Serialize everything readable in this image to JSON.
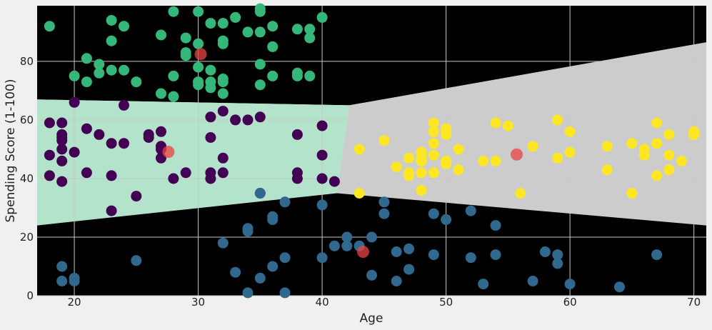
{
  "chart_data": {
    "type": "scatter",
    "title": "",
    "xlabel": "Age",
    "ylabel": "Spending Score (1-100)",
    "xlim": [
      17,
      71
    ],
    "ylim": [
      0,
      99
    ],
    "xticks": [
      20,
      30,
      40,
      50,
      60,
      70
    ],
    "yticks": [
      0,
      20,
      40,
      60,
      80
    ],
    "grid": true,
    "colors": {
      "background": "#f0f0f0",
      "grid": "#c8c8c8",
      "region_high_spenders": "#fff1a8",
      "region_young_mid": "#b3e3cb",
      "region_low_spenders": "#cdd8ea",
      "region_older_mid": "#cccccc",
      "cluster_high": "#35b779",
      "cluster_young_mid": "#440154",
      "cluster_low": "#31688e",
      "cluster_older_mid": "#fde725",
      "centroid": "#e8433f"
    },
    "regions": [
      {
        "cluster": "high",
        "vertices": [
          [
            17,
            99
          ],
          [
            71,
            99
          ],
          [
            71,
            86.5
          ],
          [
            42.2,
            65
          ],
          [
            17,
            67
          ]
        ]
      },
      {
        "cluster": "young_mid",
        "vertices": [
          [
            17,
            67
          ],
          [
            42.2,
            65
          ],
          [
            41.2,
            35
          ],
          [
            17,
            24
          ]
        ]
      },
      {
        "cluster": "older_mid",
        "vertices": [
          [
            42.2,
            65
          ],
          [
            71,
            86.5
          ],
          [
            71,
            24
          ],
          [
            41.2,
            35
          ]
        ]
      },
      {
        "cluster": "low",
        "vertices": [
          [
            17,
            24
          ],
          [
            41.2,
            35
          ],
          [
            71,
            24
          ],
          [
            71,
            0
          ],
          [
            17,
            0
          ]
        ]
      }
    ],
    "series": [
      {
        "cluster": "high",
        "points": [
          [
            18,
            92
          ],
          [
            20,
            75
          ],
          [
            21,
            81
          ],
          [
            21,
            73
          ],
          [
            22,
            79
          ],
          [
            22,
            76
          ],
          [
            23,
            94
          ],
          [
            23,
            87
          ],
          [
            23,
            77
          ],
          [
            24,
            92
          ],
          [
            24,
            77
          ],
          [
            25,
            73
          ],
          [
            27,
            89
          ],
          [
            27,
            69
          ],
          [
            28,
            97
          ],
          [
            28,
            75
          ],
          [
            28,
            68
          ],
          [
            29,
            88
          ],
          [
            29,
            83
          ],
          [
            29,
            82
          ],
          [
            30,
            97
          ],
          [
            30,
            86
          ],
          [
            30,
            78
          ],
          [
            30,
            73
          ],
          [
            30,
            72
          ],
          [
            31,
            93
          ],
          [
            31,
            77
          ],
          [
            31,
            73
          ],
          [
            31,
            71
          ],
          [
            32,
            93
          ],
          [
            32,
            87
          ],
          [
            32,
            86
          ],
          [
            32,
            74
          ],
          [
            32,
            73
          ],
          [
            32,
            69
          ],
          [
            33,
            95
          ],
          [
            34,
            90
          ],
          [
            35,
            98
          ],
          [
            35,
            97
          ],
          [
            35,
            90
          ],
          [
            35,
            79
          ],
          [
            35,
            72
          ],
          [
            36,
            92
          ],
          [
            36,
            85
          ],
          [
            36,
            75
          ],
          [
            38,
            91
          ],
          [
            38,
            76
          ],
          [
            38,
            75
          ],
          [
            39,
            91
          ],
          [
            39,
            88
          ],
          [
            39,
            75
          ],
          [
            40,
            95
          ]
        ]
      },
      {
        "cluster": "young_mid",
        "points": [
          [
            18,
            59
          ],
          [
            18,
            48
          ],
          [
            18,
            41
          ],
          [
            19,
            59
          ],
          [
            19,
            55
          ],
          [
            19,
            54
          ],
          [
            19,
            53
          ],
          [
            19,
            50
          ],
          [
            19,
            46
          ],
          [
            19,
            39
          ],
          [
            20,
            66
          ],
          [
            20,
            49
          ],
          [
            21,
            57
          ],
          [
            21,
            42
          ],
          [
            22,
            55
          ],
          [
            23,
            52
          ],
          [
            23,
            41
          ],
          [
            23,
            29
          ],
          [
            24,
            65
          ],
          [
            24,
            52
          ],
          [
            25,
            34
          ],
          [
            26,
            55
          ],
          [
            26,
            54
          ],
          [
            27,
            56
          ],
          [
            27,
            51
          ],
          [
            27,
            50
          ],
          [
            27,
            47
          ],
          [
            28,
            40
          ],
          [
            29,
            42
          ],
          [
            31,
            61
          ],
          [
            31,
            54
          ],
          [
            31,
            42
          ],
          [
            31,
            40
          ],
          [
            32,
            63
          ],
          [
            32,
            47
          ],
          [
            32,
            42
          ],
          [
            33,
            60
          ],
          [
            34,
            60
          ],
          [
            35,
            61
          ],
          [
            35,
            35
          ],
          [
            38,
            55
          ],
          [
            38,
            42
          ],
          [
            38,
            40
          ],
          [
            40,
            58
          ],
          [
            40,
            48
          ],
          [
            40,
            40
          ],
          [
            41,
            39
          ]
        ]
      },
      {
        "cluster": "low",
        "points": [
          [
            19,
            10
          ],
          [
            19,
            5
          ],
          [
            20,
            6
          ],
          [
            20,
            5
          ],
          [
            25,
            12
          ],
          [
            32,
            18
          ],
          [
            33,
            8
          ],
          [
            34,
            23
          ],
          [
            34,
            22
          ],
          [
            34,
            1
          ],
          [
            35,
            35
          ],
          [
            35,
            6
          ],
          [
            36,
            27
          ],
          [
            36,
            26
          ],
          [
            36,
            10
          ],
          [
            37,
            32
          ],
          [
            37,
            13
          ],
          [
            37,
            1
          ],
          [
            40,
            31
          ],
          [
            40,
            13
          ],
          [
            41,
            17
          ],
          [
            42,
            20
          ],
          [
            42,
            17
          ],
          [
            43,
            17
          ],
          [
            44,
            20
          ],
          [
            44,
            7
          ],
          [
            45,
            32
          ],
          [
            45,
            28
          ],
          [
            46,
            15
          ],
          [
            46,
            5
          ],
          [
            47,
            16
          ],
          [
            47,
            9
          ],
          [
            49,
            28
          ],
          [
            49,
            14
          ],
          [
            50,
            26
          ],
          [
            52,
            29
          ],
          [
            52,
            13
          ],
          [
            53,
            4
          ],
          [
            54,
            24
          ],
          [
            54,
            14
          ],
          [
            57,
            5
          ],
          [
            58,
            15
          ],
          [
            59,
            14
          ],
          [
            59,
            11
          ],
          [
            60,
            4
          ],
          [
            64,
            3
          ],
          [
            67,
            14
          ]
        ]
      },
      {
        "cluster": "older_mid",
        "points": [
          [
            43,
            50
          ],
          [
            43,
            35
          ],
          [
            45,
            53
          ],
          [
            46,
            44
          ],
          [
            47,
            47
          ],
          [
            47,
            42
          ],
          [
            47,
            41
          ],
          [
            48,
            49
          ],
          [
            48,
            47
          ],
          [
            48,
            46
          ],
          [
            48,
            42
          ],
          [
            48,
            36
          ],
          [
            49,
            59
          ],
          [
            49,
            56
          ],
          [
            49,
            52
          ],
          [
            49,
            48
          ],
          [
            49,
            42
          ],
          [
            50,
            57
          ],
          [
            50,
            55
          ],
          [
            50,
            46
          ],
          [
            50,
            45
          ],
          [
            51,
            50
          ],
          [
            51,
            43
          ],
          [
            53,
            46
          ],
          [
            54,
            59
          ],
          [
            54,
            46
          ],
          [
            55,
            58
          ],
          [
            56,
            35
          ],
          [
            57,
            51
          ],
          [
            59,
            60
          ],
          [
            59,
            47
          ],
          [
            60,
            56
          ],
          [
            60,
            49
          ],
          [
            63,
            51
          ],
          [
            63,
            43
          ],
          [
            65,
            52
          ],
          [
            65,
            35
          ],
          [
            66,
            50
          ],
          [
            66,
            48
          ],
          [
            67,
            59
          ],
          [
            67,
            52
          ],
          [
            67,
            41
          ],
          [
            68,
            55
          ],
          [
            68,
            48
          ],
          [
            68,
            43
          ],
          [
            69,
            46
          ],
          [
            70,
            56
          ],
          [
            70,
            55
          ]
        ]
      }
    ],
    "centroids": [
      [
        30.2,
        82.5
      ],
      [
        27.6,
        49.1
      ],
      [
        43.3,
        15.0
      ],
      [
        55.7,
        48.2
      ]
    ]
  }
}
